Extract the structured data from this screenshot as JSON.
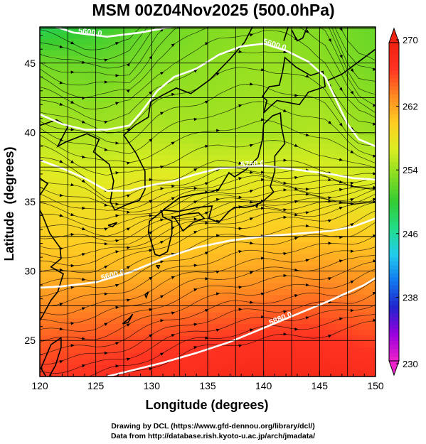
{
  "chart_data": {
    "type": "heatmap",
    "title": "MSM 00Z04Nov2025 (500.0hPa)",
    "xlabel": "Longitude (degrees)",
    "ylabel": "Latitude  (degrees)",
    "xlim": [
      120,
      150
    ],
    "ylim": [
      22.4,
      47.6
    ],
    "x_ticks": [
      120,
      125,
      130,
      135,
      140,
      145,
      150
    ],
    "y_ticks": [
      25,
      30,
      35,
      40,
      45
    ],
    "grid": true,
    "overlays": [
      "coastlines",
      "streamlines",
      "wind-direction-arrows"
    ],
    "colorbar": {
      "label_values": [
        230,
        238,
        246,
        254,
        262,
        270
      ],
      "range": [
        230,
        270
      ],
      "extend": "both",
      "colors": [
        "#ee22cc",
        "#9900dd",
        "#2222cc",
        "#1177ee",
        "#22ccee",
        "#22dd88",
        "#33cc33",
        "#88dd22",
        "#ddee22",
        "#ffcc22",
        "#ff8822",
        "#ff3322",
        "#ee2211"
      ]
    },
    "temperature_field": {
      "x": [
        120,
        125,
        130,
        135,
        140,
        145,
        150
      ],
      "y": [
        22.4,
        25,
        30,
        35,
        40,
        45,
        47.6
      ],
      "values": [
        [
          266.5,
          267.0,
          267.5,
          268.0,
          268.5,
          268.5,
          268.0
        ],
        [
          265.0,
          265.5,
          266.0,
          266.5,
          267.0,
          267.0,
          266.0
        ],
        [
          261.0,
          261.0,
          261.0,
          261.5,
          262.0,
          262.5,
          262.0
        ],
        [
          258.5,
          258.0,
          258.5,
          258.0,
          258.5,
          258.0,
          257.5
        ],
        [
          255.0,
          254.5,
          255.0,
          254.5,
          254.5,
          255.0,
          254.0
        ],
        [
          252.5,
          252.0,
          253.0,
          253.5,
          254.0,
          253.5,
          252.5
        ],
        [
          248.5,
          250.0,
          252.0,
          253.0,
          253.5,
          253.0,
          252.0
        ]
      ]
    },
    "height_contours": [
      {
        "label": "5600.0",
        "points": [
          [
            120.0,
            28.8
          ],
          [
            122.0,
            28.9
          ],
          [
            125.0,
            29.2
          ],
          [
            128.0,
            29.9
          ],
          [
            131.0,
            30.9
          ],
          [
            134.0,
            31.7
          ],
          [
            137.0,
            32.2
          ],
          [
            140.0,
            32.5
          ],
          [
            143.0,
            32.7
          ],
          [
            146.0,
            32.9
          ],
          [
            148.0,
            33.2
          ],
          [
            150.0,
            33.8
          ]
        ]
      },
      {
        "label": "5600.0",
        "points": [
          [
            120.0,
            41.3
          ],
          [
            122.0,
            40.6
          ],
          [
            124.0,
            40.2
          ],
          [
            126.0,
            40.2
          ],
          [
            128.0,
            40.5
          ],
          [
            129.0,
            41.4
          ],
          [
            130.5,
            43.0
          ],
          [
            132.0,
            44.0
          ],
          [
            134.0,
            44.6
          ],
          [
            136.0,
            45.6
          ],
          [
            138.0,
            46.2
          ],
          [
            140.0,
            46.4
          ],
          [
            142.0,
            45.9
          ],
          [
            144.0,
            45.1
          ],
          [
            145.5,
            44.0
          ],
          [
            146.5,
            42.3
          ],
          [
            147.5,
            40.6
          ],
          [
            148.5,
            39.5
          ],
          [
            150.0,
            39.0
          ]
        ]
      },
      {
        "label": "5760.0",
        "points": [
          [
            120.0,
            38.0
          ],
          [
            122.0,
            37.4
          ],
          [
            124.0,
            36.7
          ],
          [
            126.0,
            35.8
          ],
          [
            128.0,
            35.8
          ],
          [
            130.0,
            36.2
          ],
          [
            132.0,
            36.5
          ],
          [
            134.0,
            37.0
          ],
          [
            136.0,
            37.4
          ],
          [
            138.0,
            37.5
          ],
          [
            140.0,
            37.6
          ],
          [
            142.0,
            37.4
          ],
          [
            144.0,
            37.2
          ],
          [
            146.0,
            37.0
          ],
          [
            148.0,
            36.7
          ],
          [
            150.0,
            36.6
          ]
        ]
      },
      {
        "label": "5880.0",
        "points": [
          [
            126.0,
            22.4
          ],
          [
            128.0,
            22.8
          ],
          [
            131.0,
            23.4
          ],
          [
            134.0,
            24.1
          ],
          [
            137.0,
            24.9
          ],
          [
            140.0,
            25.9
          ],
          [
            143.0,
            26.9
          ],
          [
            146.0,
            27.9
          ],
          [
            149.0,
            29.0
          ],
          [
            150.0,
            29.5
          ]
        ]
      },
      {
        "label": "5600.0",
        "points": [
          [
            120.0,
            48.0
          ],
          [
            123.0,
            47.2
          ],
          [
            126.0,
            46.9
          ],
          [
            129.0,
            47.2
          ],
          [
            133.0,
            47.8
          ]
        ]
      }
    ]
  },
  "credits": {
    "line1": "Drawing by DCL (https://www.gfd-dennou.org/library/dcl/)",
    "line2": "Data from http://database.rish.kyoto-u.ac.jp/arch/jmadata/"
  }
}
